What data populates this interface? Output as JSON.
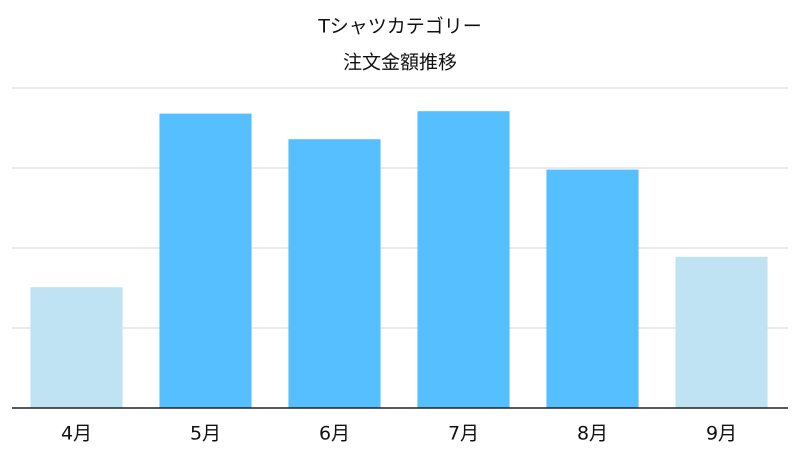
{
  "chart_data": {
    "type": "bar",
    "title": "Tシャツカテゴリー",
    "subtitle": "注文金額推移",
    "categories": [
      "4月",
      "5月",
      "6月",
      "7月",
      "8月",
      "9月"
    ],
    "values": [
      1.51,
      3.68,
      3.36,
      3.71,
      2.98,
      1.89
    ],
    "colors": [
      "#bfe3f2",
      "#55bfff",
      "#55bfff",
      "#55bfff",
      "#55bfff",
      "#bfe3f2"
    ],
    "ylim": [
      0,
      4
    ],
    "yticks": [
      0,
      1,
      2,
      3,
      4
    ],
    "grid": true
  }
}
